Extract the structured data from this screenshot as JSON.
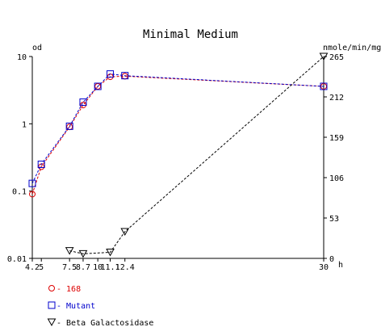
{
  "chart_data": {
    "type": "line",
    "title": "Minimal Medium",
    "xlabel": "h",
    "ylabel_left": "od",
    "ylabel_right": "nmole/min/mg",
    "x_ticks": [
      "4.2",
      "5",
      "7.5",
      "8.7",
      "10",
      "11.1",
      "12.4",
      "30"
    ],
    "x_tick_values": [
      4.2,
      5,
      7.5,
      8.7,
      10,
      11.1,
      12.4,
      30
    ],
    "xlim": [
      4.2,
      30
    ],
    "y_left_ticks": [
      "0.01",
      "0.1",
      "1",
      "10"
    ],
    "y_left_tick_values": [
      0.01,
      0.1,
      1,
      10
    ],
    "y_left_scale": "log",
    "y_left_lim": [
      0.01,
      10
    ],
    "y_right_ticks": [
      "0",
      "53",
      "106",
      "159",
      "212",
      "265"
    ],
    "y_right_tick_values": [
      0,
      53,
      106,
      159,
      212,
      265
    ],
    "y_right_lim": [
      0,
      265
    ],
    "legend_placement": "bottom-left",
    "series": [
      {
        "name": "168",
        "axis": "left",
        "color": "#dd0000",
        "marker": "circle",
        "x": [
          4.2,
          5,
          7.5,
          8.7,
          10,
          11.1,
          12.4,
          30
        ],
        "y": [
          0.09,
          0.23,
          0.9,
          1.9,
          3.6,
          5.0,
          5.1,
          3.6
        ]
      },
      {
        "name": "Mutant",
        "axis": "left",
        "color": "#0000cc",
        "marker": "square",
        "x": [
          4.2,
          5,
          7.5,
          8.7,
          10,
          11.1,
          12.4,
          30
        ],
        "y": [
          0.13,
          0.25,
          0.92,
          2.1,
          3.6,
          5.5,
          5.2,
          3.6
        ]
      },
      {
        "name": "Beta Galactosidase",
        "axis": "right",
        "color": "#000000",
        "marker": "triangle-down",
        "x": [
          7.5,
          8.7,
          11.1,
          12.4,
          30
        ],
        "y": [
          10,
          6,
          8,
          35,
          265
        ]
      }
    ]
  }
}
